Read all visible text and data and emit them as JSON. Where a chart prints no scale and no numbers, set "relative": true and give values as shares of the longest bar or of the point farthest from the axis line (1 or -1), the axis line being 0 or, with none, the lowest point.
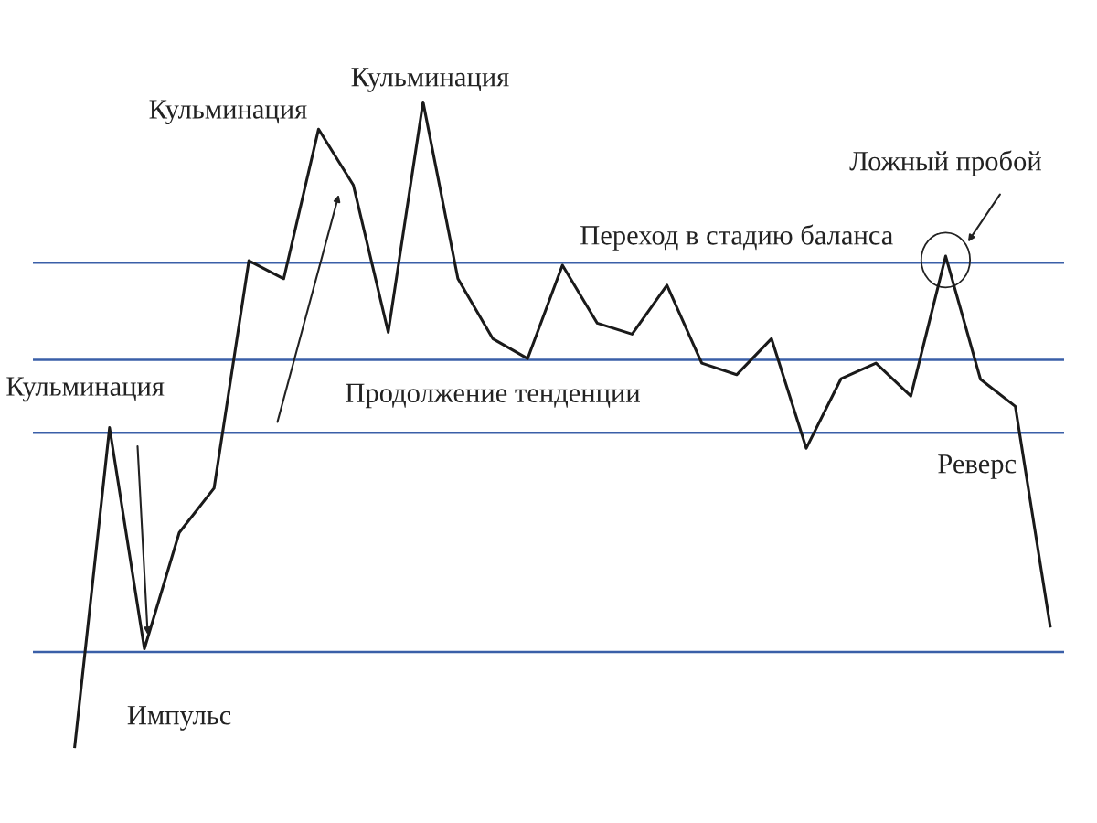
{
  "chart_data": {
    "type": "line",
    "relative": true,
    "categories": [
      null,
      null,
      null,
      null,
      null,
      null,
      null,
      null,
      null,
      null,
      null,
      null,
      null,
      null,
      null,
      null,
      null,
      null,
      null,
      null,
      null,
      null,
      null,
      null,
      null,
      null,
      null,
      null,
      null
    ],
    "series": [
      {
        "color": "#1a1a1a",
        "values": [
          0,
          0.495,
          0.152,
          0.332,
          0.401,
          0.754,
          0.726,
          0.958,
          0.871,
          0.643,
          1,
          0.726,
          0.633,
          0.602,
          0.747,
          0.657,
          0.64,
          0.716,
          0.595,
          0.577,
          0.633,
          0.463,
          0.571,
          0.595,
          0.544,
          0.761,
          0.57,
          0.528,
          0.187
        ]
      }
    ],
    "ref_lines": [
      {
        "axis": "y",
        "value": 0.751,
        "label": null,
        "color": "#3a5fa8"
      },
      {
        "axis": "y",
        "value": 0.6,
        "label": null,
        "color": "#3a5fa8"
      },
      {
        "axis": "y",
        "value": 0.487,
        "label": null,
        "color": "#3a5fa8"
      },
      {
        "axis": "y",
        "value": 0.147,
        "label": null,
        "color": "#3a5fa8"
      }
    ],
    "annotations": [
      "Кульминация",
      "Кульминация",
      "Кульминация",
      "Ложный пробой",
      "Переход в стадию баланса",
      "Продолжение тенденции",
      "Реверс",
      "Импульс"
    ],
    "legend": false,
    "marker": "none",
    "line_style": "solid"
  }
}
